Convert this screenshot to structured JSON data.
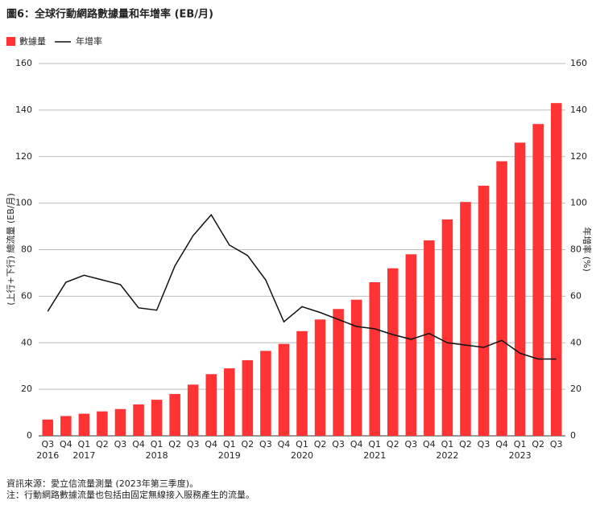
{
  "chart_data": {
    "type": "bar_line",
    "title": "圖6：全球行動網路數據量和年增率 (EB/月)",
    "y_label": "(上行+下行) 總流量 (EB/月)",
    "y2_label": "年增率 (%)",
    "categories": [
      "Q3",
      "Q4",
      "Q1",
      "Q2",
      "Q3",
      "Q4",
      "Q1",
      "Q2",
      "Q3",
      "Q4",
      "Q1",
      "Q2",
      "Q3",
      "Q4",
      "Q1",
      "Q2",
      "Q3",
      "Q4",
      "Q1",
      "Q2",
      "Q3",
      "Q4",
      "Q1",
      "Q2",
      "Q3",
      "Q4",
      "Q1",
      "Q2",
      "Q3"
    ],
    "years": [
      "2016",
      null,
      "2017",
      null,
      null,
      null,
      "2018",
      null,
      null,
      null,
      "2019",
      null,
      null,
      null,
      "2020",
      null,
      null,
      null,
      "2021",
      null,
      null,
      null,
      "2022",
      null,
      null,
      null,
      "2023",
      null,
      null
    ],
    "series": [
      {
        "name": "數據量",
        "type": "bar",
        "color": "#ff3333",
        "values": [
          7,
          8.5,
          9.5,
          10.5,
          11.5,
          13.5,
          15.5,
          18,
          22,
          26.5,
          29,
          32.5,
          36.5,
          39.5,
          45,
          50,
          54.5,
          58.5,
          66,
          72,
          78,
          84,
          93,
          100.5,
          107.5,
          118,
          126,
          134,
          143
        ]
      },
      {
        "name": "年增率",
        "type": "line",
        "axis": "y2",
        "color": "#111111",
        "values": [
          53.5,
          66,
          69,
          67,
          65,
          55,
          54,
          73,
          86,
          95,
          82,
          77.5,
          67,
          49,
          55.5,
          53,
          50,
          47,
          46,
          43.5,
          41.5,
          44,
          40,
          39,
          38,
          41,
          35.5,
          33,
          33
        ]
      }
    ],
    "ylim": [
      0,
      160
    ],
    "yticks": [
      0,
      20,
      40,
      60,
      80,
      100,
      120,
      140,
      160
    ],
    "y2lim": [
      0,
      160
    ],
    "y2ticks": [
      0,
      20,
      40,
      60,
      80,
      100,
      120,
      140,
      160
    ],
    "grid": true,
    "legend": "top-left",
    "notes": [
      "資訊來源：愛立信流量測量 (2023年第三季度)。",
      "注：行動網路數據流量也包括由固定無線接入服務產生的流量。"
    ]
  }
}
